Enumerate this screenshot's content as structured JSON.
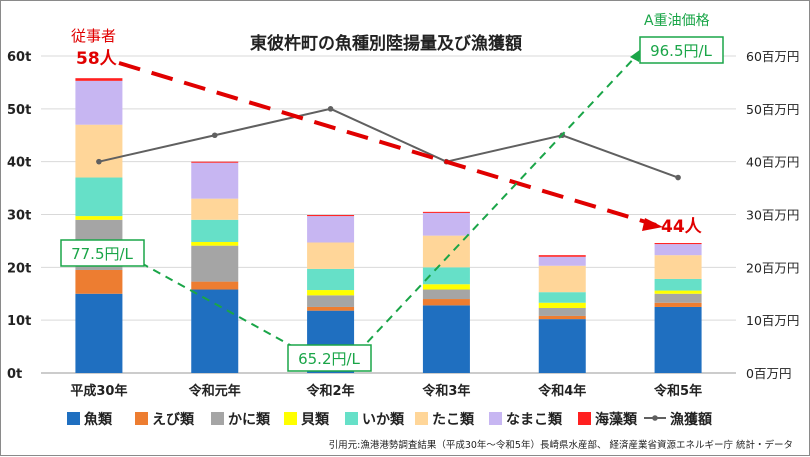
{
  "chart_data": {
    "type": "bar",
    "stacked": true,
    "title": "東彼杵町の魚種別陸揚量及び漁獲額",
    "categories": [
      "平成30年",
      "令和元年",
      "令和2年",
      "令和3年",
      "令和4年",
      "令和5年"
    ],
    "left_axis": {
      "ticks": [
        "0t",
        "10t",
        "20t",
        "30t",
        "40t",
        "50t",
        "60t"
      ],
      "ylim": [
        0,
        60
      ]
    },
    "right_axis": {
      "ticks": [
        "0百万円",
        "10百万円",
        "20百万円",
        "30百万円",
        "40百万円",
        "50百万円",
        "60百万円"
      ],
      "ylim": [
        0,
        60
      ]
    },
    "series": [
      {
        "name": "魚類",
        "color": "#1f6fc0",
        "values": [
          15.0,
          15.8,
          11.8,
          12.8,
          10.2,
          12.5
        ]
      },
      {
        "name": "えび類",
        "color": "#ed7d31",
        "values": [
          4.5,
          1.5,
          0.7,
          1.2,
          0.6,
          0.8
        ]
      },
      {
        "name": "かに類",
        "color": "#a5a5a5",
        "values": [
          9.5,
          6.8,
          2.2,
          1.8,
          1.5,
          1.7
        ]
      },
      {
        "name": "貝類",
        "color": "#ffff00",
        "values": [
          0.7,
          0.7,
          1.0,
          1.0,
          1.0,
          0.6
        ]
      },
      {
        "name": "いか類",
        "color": "#66e0c8",
        "values": [
          7.3,
          4.2,
          4.0,
          3.2,
          2.0,
          2.2
        ]
      },
      {
        "name": "たこ類",
        "color": "#ffd699",
        "values": [
          10.0,
          4.0,
          5.0,
          6.0,
          5.0,
          4.5
        ]
      },
      {
        "name": "なまこ類",
        "color": "#c7b6f2",
        "values": [
          8.3,
          6.8,
          5.0,
          4.3,
          1.7,
          2.1
        ]
      },
      {
        "name": "海藻類",
        "color": "#ff2020",
        "values": [
          0.5,
          0.2,
          0.2,
          0.2,
          0.3,
          0.2
        ]
      }
    ],
    "line": {
      "name": "漁獲額",
      "color": "#606060",
      "values": [
        40,
        45,
        50,
        40,
        45,
        37
      ]
    },
    "legend": [
      "魚類",
      "えび類",
      "かに類",
      "貝類",
      "いか類",
      "たこ類",
      "なまこ類",
      "海藻類",
      "漁獲額"
    ],
    "annotations": {
      "workers_label": "従事者",
      "workers_start": "58人",
      "workers_end": "44人",
      "fuel_label": "A重油価格",
      "fuel_values": [
        "77.5円/L",
        "65.2円/L",
        "96.5円/L"
      ]
    },
    "source": "引用元:漁港港勢調査結果（平成30年～令和5年）長崎県水産部、 経済産業省資源エネルギー庁 統計・データ"
  }
}
